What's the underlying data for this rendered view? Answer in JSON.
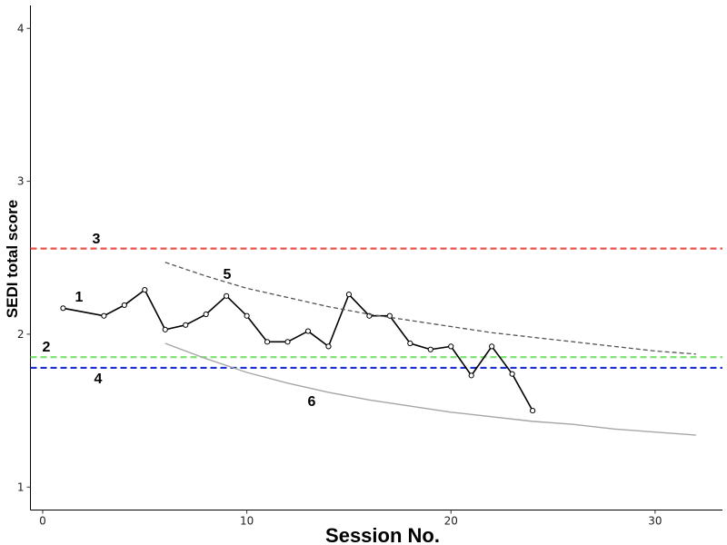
{
  "chart_data": {
    "type": "line",
    "title": "",
    "xlabel": "Session No.",
    "ylabel": "SEDI total score",
    "xlim": [
      -0.6,
      33.3
    ],
    "ylim": [
      0.85,
      4.15
    ],
    "x_ticks": [
      0,
      10,
      20,
      30
    ],
    "y_ticks": [
      1,
      2,
      3,
      4
    ],
    "grid": false,
    "series": [
      {
        "label": "1",
        "style": "solid-markers",
        "color": "#000000",
        "x": [
          1,
          3,
          4,
          5,
          6,
          7,
          8,
          9,
          10,
          11,
          12,
          13,
          14,
          15,
          16,
          17,
          18,
          19,
          20,
          21,
          22,
          23,
          24
        ],
        "y": [
          2.17,
          2.12,
          2.19,
          2.29,
          2.03,
          2.06,
          2.13,
          2.25,
          2.12,
          1.95,
          1.95,
          2.02,
          1.92,
          2.26,
          2.12,
          2.12,
          1.94,
          1.9,
          1.92,
          1.73,
          1.92,
          1.74,
          1.5
        ]
      },
      {
        "label": "5",
        "style": "dashed",
        "color": "#555555",
        "x": [
          6,
          8,
          10,
          12,
          14,
          16,
          18,
          20,
          22,
          24,
          26,
          28,
          30,
          32
        ],
        "y": [
          2.47,
          2.38,
          2.3,
          2.24,
          2.18,
          2.13,
          2.09,
          2.05,
          2.01,
          1.98,
          1.95,
          1.92,
          1.89,
          1.87
        ]
      },
      {
        "label": "6",
        "style": "solid",
        "color": "#a6a6a6",
        "x": [
          6,
          8,
          10,
          12,
          14,
          16,
          18,
          20,
          22,
          24,
          26,
          28,
          30,
          32
        ],
        "y": [
          1.94,
          1.84,
          1.75,
          1.68,
          1.62,
          1.57,
          1.53,
          1.49,
          1.46,
          1.43,
          1.41,
          1.38,
          1.36,
          1.34
        ]
      }
    ],
    "reference_lines": [
      {
        "label": "3",
        "y": 2.56,
        "color": "#e8554e",
        "style": "dashed"
      },
      {
        "label": "2",
        "y": 1.85,
        "color": "#77e36b",
        "style": "dashed"
      },
      {
        "label": "4",
        "y": 1.78,
        "color": "#1c2fd4",
        "style": "dashed"
      }
    ]
  }
}
